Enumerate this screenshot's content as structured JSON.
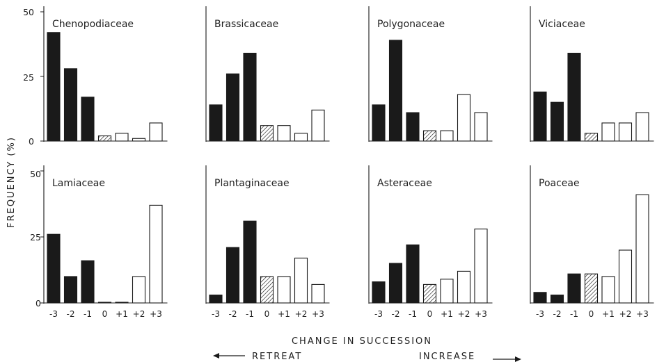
{
  "chart_data": {
    "type": "bar",
    "ylabel": "FREQUENCY (%)",
    "xlabel": "CHANGE IN SUCCESSION",
    "direction_left": "RETREAT",
    "direction_right": "INCREASE",
    "categories": [
      "-3",
      "-2",
      "-1",
      "0",
      "+1",
      "+2",
      "+3"
    ],
    "bar_styles": [
      "solid",
      "solid",
      "solid",
      "hatched",
      "open",
      "open",
      "open"
    ],
    "ylim": [
      0,
      50
    ],
    "yticks_top_row": [
      "0",
      "25",
      "50"
    ],
    "yticks_bottom_row": [
      "0",
      "25",
      "50"
    ],
    "panels": [
      {
        "name": "Chenopodiaceae",
        "values": [
          42,
          28,
          17,
          2,
          3,
          1,
          7
        ]
      },
      {
        "name": "Brassicaceae",
        "values": [
          14,
          26,
          34,
          6,
          6,
          3,
          12
        ]
      },
      {
        "name": "Polygonaceae",
        "values": [
          14,
          39,
          11,
          4,
          4,
          18,
          11
        ]
      },
      {
        "name": "Viciaceae",
        "values": [
          19,
          15,
          34,
          3,
          7,
          7,
          11
        ]
      },
      {
        "name": "Lamiaceae",
        "values": [
          26,
          10,
          16,
          0,
          0,
          10,
          37
        ]
      },
      {
        "name": "Plantaginaceae",
        "values": [
          3,
          21,
          31,
          10,
          10,
          17,
          7
        ]
      },
      {
        "name": "Asteraceae",
        "values": [
          8,
          15,
          22,
          7,
          9,
          12,
          28
        ]
      },
      {
        "name": "Poaceae",
        "values": [
          4,
          3,
          11,
          11,
          10,
          20,
          41
        ]
      }
    ]
  },
  "colors": {
    "ink": "#1a1a1a",
    "background": "#ffffff"
  }
}
